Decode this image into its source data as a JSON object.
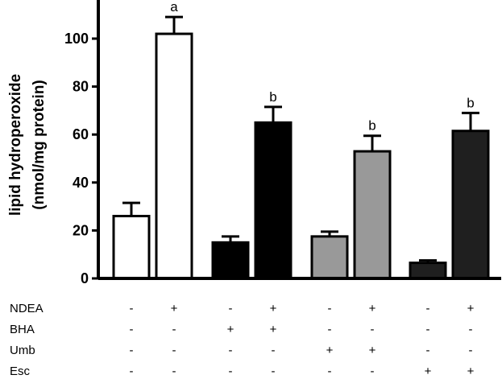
{
  "chart_data": {
    "type": "bar",
    "ylabel_line1": "lipid hydroperoxide",
    "ylabel_line2": "(nmol/mg protein)",
    "ylim": [
      0,
      120
    ],
    "yticks": [
      0,
      20,
      40,
      60,
      80,
      100
    ],
    "bars": [
      {
        "value": 26,
        "error": 5.5,
        "fill": "#ffffff",
        "sig": ""
      },
      {
        "value": 102,
        "error": 7,
        "fill": "#ffffff",
        "sig": "a"
      },
      {
        "value": 15,
        "error": 2.5,
        "fill": "#000000",
        "sig": ""
      },
      {
        "value": 65,
        "error": 6.5,
        "fill": "#000000",
        "sig": "b"
      },
      {
        "value": 17.5,
        "error": 2,
        "fill": "#999999",
        "sig": ""
      },
      {
        "value": 53,
        "error": 6.5,
        "fill": "#999999",
        "sig": "b"
      },
      {
        "value": 6.5,
        "error": 1,
        "fill": "#1f1f1f",
        "sig": ""
      },
      {
        "value": 61.5,
        "error": 7.5,
        "fill": "#1f1f1f",
        "sig": "b"
      }
    ],
    "treatment_table": [
      {
        "name": "NDEA",
        "values": [
          "-",
          "+",
          "-",
          "+",
          "-",
          "+",
          "-",
          "+"
        ]
      },
      {
        "name": "BHA",
        "values": [
          "-",
          "-",
          "+",
          "+",
          "-",
          "-",
          "-",
          "-"
        ]
      },
      {
        "name": "Umb",
        "values": [
          "-",
          "-",
          "-",
          "-",
          "+",
          "+",
          "-",
          "-"
        ]
      },
      {
        "name": "Esc",
        "values": [
          "-",
          "-",
          "-",
          "-",
          "-",
          "-",
          "+",
          "+"
        ]
      }
    ],
    "grid": false,
    "legend": "none"
  }
}
